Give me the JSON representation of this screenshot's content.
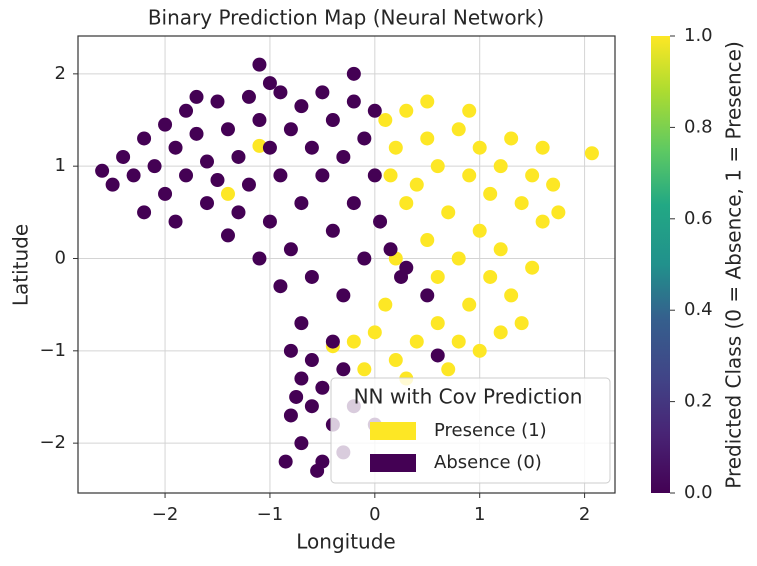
{
  "chart_data": {
    "type": "scatter",
    "title": "Binary Prediction Map (Neural Network)",
    "xlabel": "Longitude",
    "ylabel": "Latitude",
    "xlim": [
      -2.83,
      2.29
    ],
    "ylim": [
      -2.54,
      2.41
    ],
    "xticks": [
      {
        "value": -2,
        "label": "−2"
      },
      {
        "value": -1,
        "label": "−1"
      },
      0,
      1,
      2
    ],
    "yticks": [
      {
        "value": -2,
        "label": "−2"
      },
      {
        "value": -1,
        "label": "−1"
      },
      0,
      1,
      2
    ],
    "grid": true,
    "legend_title": "NN with Cov Prediction",
    "legend_position": "lower right",
    "series": [
      {
        "name": "Presence (1)",
        "color": "#fde725",
        "x": [
          0.1,
          0.2,
          0.3,
          0.4,
          0.5,
          0.6,
          0.7,
          0.8,
          0.9,
          1.0,
          1.0,
          1.1,
          1.2,
          1.2,
          1.3,
          1.4,
          1.5,
          1.5,
          1.6,
          1.6,
          1.7,
          1.3,
          1.1,
          0.9,
          1.2,
          1.0,
          0.8,
          0.6,
          0.4,
          0.2,
          0.0,
          -0.2,
          -0.4,
          0.3,
          0.7,
          0.5,
          0.3,
          0.15,
          0.8,
          2.07,
          -1.4,
          -1.1,
          1.4,
          0.9,
          0.5,
          0.2,
          0.1,
          -0.1,
          1.75,
          0.6
        ],
        "y": [
          1.5,
          1.2,
          1.6,
          0.8,
          1.3,
          1.0,
          0.5,
          1.4,
          0.9,
          0.3,
          1.2,
          0.7,
          1.0,
          0.1,
          1.3,
          0.6,
          0.9,
          -0.1,
          1.2,
          0.4,
          0.8,
          -0.4,
          -0.2,
          -0.5,
          -0.8,
          -1.0,
          -0.9,
          -0.7,
          -0.9,
          -1.1,
          -0.8,
          -0.9,
          -0.95,
          -1.3,
          -1.2,
          0.2,
          0.6,
          0.9,
          0.0,
          1.14,
          0.7,
          1.22,
          -0.7,
          1.6,
          1.7,
          0.0,
          -0.5,
          -1.2,
          0.5,
          -0.2
        ]
      },
      {
        "name": "Absence (0)",
        "color": "#440154",
        "x": [
          -2.6,
          -2.5,
          -2.4,
          -2.3,
          -2.2,
          -2.1,
          -2.0,
          -2.0,
          -1.9,
          -1.8,
          -1.8,
          -1.7,
          -1.6,
          -1.6,
          -1.5,
          -1.5,
          -1.4,
          -1.3,
          -1.3,
          -1.2,
          -1.2,
          -1.1,
          -1.0,
          -1.0,
          -0.9,
          -0.9,
          -0.8,
          -0.8,
          -0.7,
          -0.7,
          -0.6,
          -0.6,
          -0.5,
          -0.5,
          -0.4,
          -0.4,
          -0.3,
          -0.3,
          -0.2,
          -0.2,
          -0.1,
          -0.1,
          0.0,
          0.0,
          0.05,
          0.15,
          0.25,
          -2.2,
          -1.9,
          -1.7,
          -1.1,
          -1.0,
          -0.2,
          -1.4,
          -1.1,
          -0.9,
          -0.7,
          -0.8,
          -0.7,
          -0.6,
          -0.8,
          -0.7,
          -0.5,
          -0.6,
          -0.5,
          -0.4,
          -0.3,
          -0.2,
          -0.75,
          -0.55,
          -0.4,
          -0.3,
          0.0,
          -0.85,
          0.6,
          0.3,
          0.5
        ],
        "y": [
          0.95,
          0.8,
          1.1,
          0.9,
          1.3,
          1.0,
          0.7,
          1.45,
          1.2,
          0.9,
          1.6,
          1.35,
          1.05,
          0.6,
          1.7,
          0.85,
          1.4,
          1.1,
          0.5,
          1.75,
          0.8,
          1.5,
          1.2,
          0.4,
          1.8,
          0.9,
          1.4,
          0.1,
          1.65,
          0.6,
          1.2,
          -0.2,
          1.8,
          0.9,
          0.3,
          1.5,
          1.1,
          -0.4,
          1.7,
          0.6,
          1.3,
          0.0,
          0.9,
          1.6,
          0.4,
          0.1,
          -0.2,
          0.5,
          0.4,
          1.75,
          2.1,
          1.9,
          2.0,
          0.25,
          0.0,
          -0.3,
          -0.7,
          -1.0,
          -1.3,
          -1.6,
          -1.7,
          -2.0,
          -2.2,
          -1.1,
          -1.4,
          -1.8,
          -2.1,
          -1.6,
          -1.5,
          -2.3,
          -0.9,
          -1.2,
          -1.8,
          -2.2,
          -1.05,
          -0.1,
          -0.4
        ]
      }
    ],
    "colorbar": {
      "label": "Predicted Class (0 = Absence, 1 = Presence)",
      "lim": [
        0,
        1
      ],
      "ticks": [
        {
          "value": 0,
          "label": "0.0"
        },
        {
          "value": 0.2,
          "label": "0.2"
        },
        {
          "value": 0.4,
          "label": "0.4"
        },
        {
          "value": 0.6,
          "label": "0.6"
        },
        {
          "value": 0.8,
          "label": "0.8"
        },
        {
          "value": 1,
          "label": "1.0"
        }
      ]
    }
  }
}
